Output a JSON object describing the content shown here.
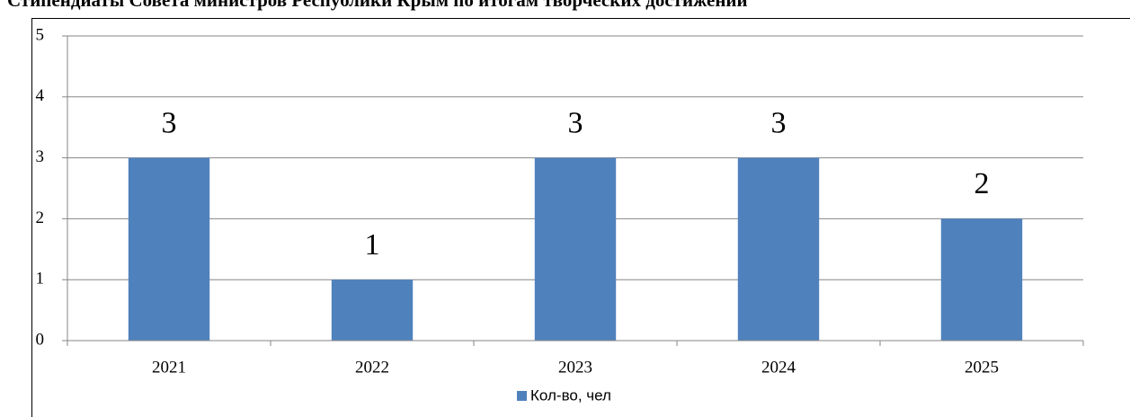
{
  "chart_data": {
    "type": "bar",
    "title": "Стипендиаты Совета министров Республики Крым по итогам творческих достижений",
    "categories": [
      "2021",
      "2022",
      "2023",
      "2024",
      "2025"
    ],
    "series": [
      {
        "name": "Кол-во, чел",
        "color": "#4f81bd",
        "values": [
          3,
          1,
          3,
          3,
          2
        ]
      }
    ],
    "ylim": [
      0,
      5
    ],
    "yticks": [
      0,
      1,
      2,
      3,
      4,
      5
    ],
    "grid": true,
    "legend": "bottom"
  }
}
